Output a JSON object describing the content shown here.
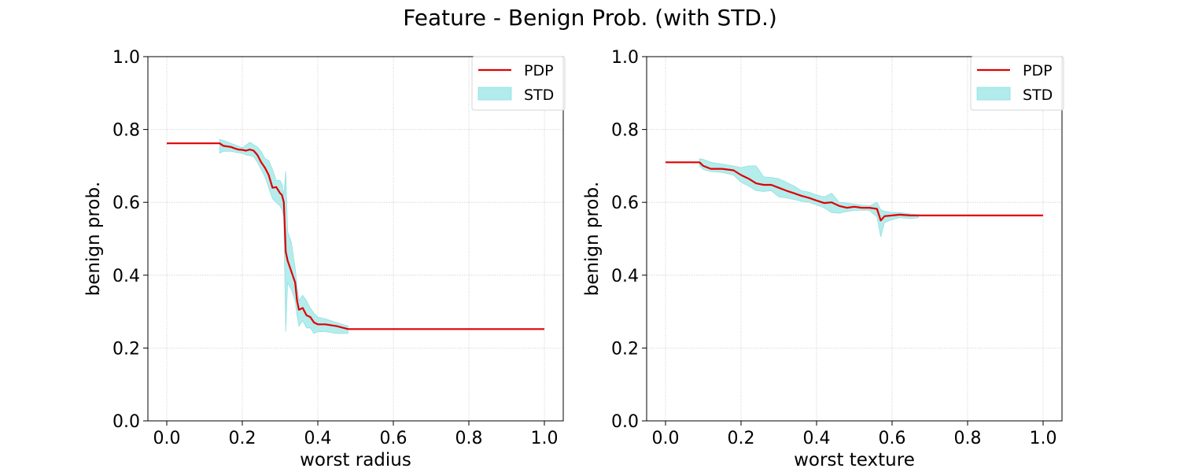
{
  "figure": {
    "title": "Feature - Benign Prob. (with STD.)"
  },
  "colors": {
    "pdp": "#e00000",
    "std_fill": "#b2ebeb",
    "std_edge": "#8fdede",
    "grid": "#cfcfcf"
  },
  "chart_data": [
    {
      "type": "line",
      "xlabel": "worst radius",
      "ylabel": "benign prob.",
      "xlim": [
        -0.05,
        1.05
      ],
      "ylim": [
        0.0,
        1.0
      ],
      "xticks": [
        "0.0",
        "0.2",
        "0.4",
        "0.6",
        "0.8",
        "1.0"
      ],
      "yticks": [
        "0.0",
        "0.2",
        "0.4",
        "0.6",
        "0.8",
        "1.0"
      ],
      "grid": true,
      "legend": {
        "position": "top-right",
        "entries": [
          "PDP",
          "STD"
        ]
      },
      "series": [
        {
          "name": "PDP",
          "x": [
            0.0,
            0.14,
            0.15,
            0.17,
            0.18,
            0.19,
            0.2,
            0.21,
            0.22,
            0.23,
            0.24,
            0.25,
            0.26,
            0.27,
            0.28,
            0.29,
            0.3,
            0.305,
            0.31,
            0.315,
            0.32,
            0.33,
            0.34,
            0.345,
            0.35,
            0.36,
            0.37,
            0.38,
            0.39,
            0.4,
            0.42,
            0.45,
            0.48,
            0.5,
            1.0
          ],
          "y": [
            0.762,
            0.762,
            0.755,
            0.752,
            0.748,
            0.745,
            0.744,
            0.742,
            0.745,
            0.742,
            0.73,
            0.71,
            0.695,
            0.675,
            0.64,
            0.642,
            0.625,
            0.62,
            0.6,
            0.465,
            0.44,
            0.41,
            0.38,
            0.33,
            0.305,
            0.31,
            0.29,
            0.285,
            0.27,
            0.265,
            0.265,
            0.26,
            0.252,
            0.252,
            0.252
          ]
        },
        {
          "name": "STD",
          "x": [
            0.14,
            0.15,
            0.17,
            0.18,
            0.19,
            0.2,
            0.21,
            0.22,
            0.23,
            0.24,
            0.25,
            0.26,
            0.27,
            0.28,
            0.29,
            0.3,
            0.305,
            0.31,
            0.315,
            0.32,
            0.33,
            0.34,
            0.345,
            0.35,
            0.36,
            0.37,
            0.38,
            0.39,
            0.4,
            0.42,
            0.45,
            0.48
          ],
          "upper": [
            0.773,
            0.77,
            0.762,
            0.758,
            0.754,
            0.75,
            0.757,
            0.765,
            0.758,
            0.752,
            0.74,
            0.72,
            0.715,
            0.69,
            0.66,
            0.66,
            0.65,
            0.62,
            0.685,
            0.52,
            0.49,
            0.42,
            0.37,
            0.33,
            0.345,
            0.33,
            0.31,
            0.295,
            0.285,
            0.28,
            0.27,
            0.26
          ],
          "lower": [
            0.735,
            0.74,
            0.74,
            0.738,
            0.736,
            0.735,
            0.73,
            0.728,
            0.725,
            0.71,
            0.69,
            0.67,
            0.64,
            0.61,
            0.6,
            0.59,
            0.58,
            0.56,
            0.245,
            0.38,
            0.36,
            0.33,
            0.29,
            0.26,
            0.275,
            0.255,
            0.255,
            0.24,
            0.245,
            0.245,
            0.24,
            0.24
          ]
        }
      ]
    },
    {
      "type": "line",
      "xlabel": "worst texture",
      "ylabel": "benign prob.",
      "xlim": [
        -0.05,
        1.05
      ],
      "ylim": [
        0.0,
        1.0
      ],
      "xticks": [
        "0.0",
        "0.2",
        "0.4",
        "0.6",
        "0.8",
        "1.0"
      ],
      "yticks": [
        "0.0",
        "0.2",
        "0.4",
        "0.6",
        "0.8",
        "1.0"
      ],
      "grid": true,
      "legend": {
        "position": "top-right",
        "entries": [
          "PDP",
          "STD"
        ]
      },
      "series": [
        {
          "name": "PDP",
          "x": [
            0.0,
            0.09,
            0.1,
            0.12,
            0.15,
            0.18,
            0.2,
            0.22,
            0.24,
            0.26,
            0.28,
            0.3,
            0.32,
            0.34,
            0.36,
            0.38,
            0.4,
            0.42,
            0.44,
            0.46,
            0.48,
            0.5,
            0.52,
            0.54,
            0.56,
            0.57,
            0.58,
            0.6,
            0.62,
            0.65,
            1.0
          ],
          "y": [
            0.71,
            0.71,
            0.7,
            0.692,
            0.692,
            0.688,
            0.675,
            0.665,
            0.652,
            0.648,
            0.648,
            0.64,
            0.632,
            0.625,
            0.618,
            0.612,
            0.605,
            0.598,
            0.6,
            0.59,
            0.585,
            0.588,
            0.585,
            0.585,
            0.582,
            0.55,
            0.562,
            0.564,
            0.566,
            0.564,
            0.564
          ]
        },
        {
          "name": "STD",
          "x": [
            0.09,
            0.1,
            0.12,
            0.15,
            0.18,
            0.2,
            0.22,
            0.24,
            0.26,
            0.28,
            0.3,
            0.32,
            0.34,
            0.36,
            0.38,
            0.4,
            0.42,
            0.44,
            0.46,
            0.48,
            0.5,
            0.52,
            0.54,
            0.56,
            0.57,
            0.58,
            0.6,
            0.62,
            0.65,
            0.67
          ],
          "upper": [
            0.72,
            0.718,
            0.71,
            0.705,
            0.7,
            0.695,
            0.7,
            0.7,
            0.67,
            0.668,
            0.665,
            0.655,
            0.645,
            0.632,
            0.628,
            0.62,
            0.615,
            0.625,
            0.6,
            0.598,
            0.595,
            0.592,
            0.59,
            0.6,
            0.58,
            0.575,
            0.572,
            0.572,
            0.568,
            0.566
          ],
          "lower": [
            0.7,
            0.69,
            0.685,
            0.682,
            0.675,
            0.655,
            0.645,
            0.632,
            0.63,
            0.632,
            0.615,
            0.612,
            0.608,
            0.603,
            0.6,
            0.593,
            0.585,
            0.572,
            0.57,
            0.575,
            0.578,
            0.578,
            0.578,
            0.56,
            0.505,
            0.545,
            0.552,
            0.558,
            0.555,
            0.558
          ]
        }
      ]
    }
  ]
}
